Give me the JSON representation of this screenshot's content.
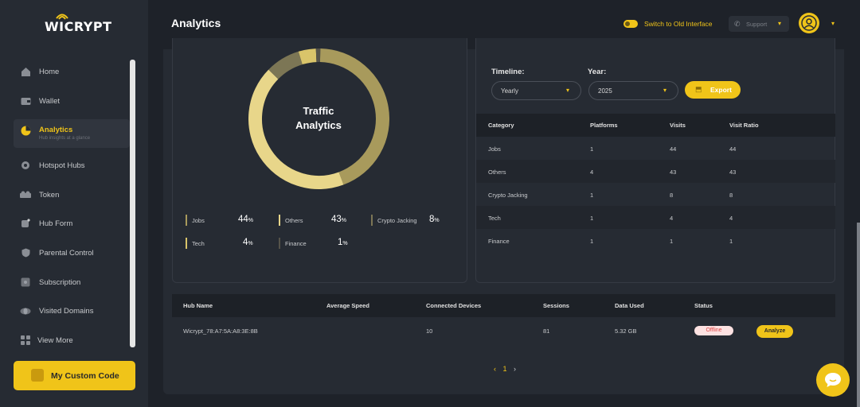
{
  "brand": {
    "logo_text": "WICRYPT"
  },
  "sidebar": {
    "items": [
      {
        "label": "Home",
        "icon": "home-icon"
      },
      {
        "label": "Wallet",
        "icon": "wallet-icon"
      },
      {
        "label": "Analytics",
        "icon": "pie-chart-icon",
        "sub": "Hub insights at a glance",
        "active": true
      },
      {
        "label": "Hotspot Hubs",
        "icon": "router-icon"
      },
      {
        "label": "Token",
        "icon": "token-icon"
      },
      {
        "label": "Hub Form",
        "icon": "form-icon"
      },
      {
        "label": "Parental Control",
        "icon": "shield-icon"
      },
      {
        "label": "Subscription",
        "icon": "subscription-icon"
      },
      {
        "label": "Visited Domains",
        "icon": "globe-icon"
      },
      {
        "label": "View More",
        "icon": "grid-icon"
      }
    ],
    "custom_code": "My Custom Code"
  },
  "header": {
    "title": "Analytics",
    "switch_label": "Switch to Old Interface",
    "support_label": "Support"
  },
  "donut": {
    "title_line1": "Traffic",
    "title_line2": "Analytics",
    "legend": [
      {
        "label": "Jobs",
        "value": "44",
        "pct": "%",
        "color": "#a89a5c"
      },
      {
        "label": "Others",
        "value": "43",
        "pct": "%",
        "color": "#e8d68a"
      },
      {
        "label": "Crypto Jacking",
        "value": "8",
        "pct": "%",
        "color": "#7c7655"
      },
      {
        "label": "Tech",
        "value": "4",
        "pct": "%",
        "color": "#d9c46a"
      },
      {
        "label": "Finance",
        "value": "1",
        "pct": "%",
        "color": "#55534a"
      }
    ],
    "segments": [
      44,
      43,
      8,
      4,
      1
    ]
  },
  "filters": {
    "timeline_label": "Timeline:",
    "timeline_value": "Yearly",
    "year_label": "Year:",
    "year_value": "2025",
    "export_label": "Export"
  },
  "category_table": {
    "headers": [
      "Category",
      "Platforms",
      "Visits",
      "Visit Ratio"
    ],
    "rows": [
      [
        "Jobs",
        "1",
        "44",
        "44"
      ],
      [
        "Others",
        "4",
        "43",
        "43"
      ],
      [
        "Crypto Jacking",
        "1",
        "8",
        "8"
      ],
      [
        "Tech",
        "1",
        "4",
        "4"
      ],
      [
        "Finance",
        "1",
        "1",
        "1"
      ]
    ]
  },
  "hub_table": {
    "headers": [
      "Hub Name",
      "Average Speed",
      "Connected Devices",
      "Sessions",
      "Data Used",
      "Status"
    ],
    "rows": [
      {
        "hub_name": "Wicrypt_78:A7:5A:A8:3E:8B",
        "speed": "",
        "devices": "10",
        "sessions": "81",
        "data_used": "5.32 GB",
        "status": "Offline",
        "action": "Analyze"
      }
    ]
  },
  "pagination": {
    "prev": "‹",
    "current": "1",
    "next": "›"
  },
  "colors": {
    "accent": "#f0c419",
    "background": "#1e2229",
    "panel": "#262b33",
    "offline": "#e04848"
  }
}
